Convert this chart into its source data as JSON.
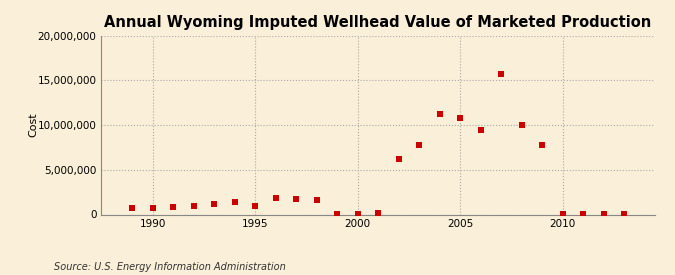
{
  "title": "Annual Wyoming Imputed Wellhead Value of Marketed Production",
  "ylabel": "Cost",
  "source": "Source: U.S. Energy Information Administration",
  "background_color": "#faefd8",
  "plot_bg_color": "#faefd8",
  "marker_color": "#cc0000",
  "years": [
    1989,
    1990,
    1991,
    1992,
    1993,
    1994,
    1995,
    1996,
    1997,
    1998,
    1999,
    2000,
    2001,
    2002,
    2003,
    2004,
    2005,
    2006,
    2007,
    2008,
    2009,
    2010,
    2011,
    2012,
    2013
  ],
  "values": [
    700000,
    750000,
    800000,
    900000,
    1200000,
    1350000,
    1000000,
    1800000,
    1750000,
    1600000,
    30000,
    30000,
    200000,
    6200000,
    7800000,
    11300000,
    10800000,
    9500000,
    15700000,
    10000000,
    7800000,
    50000,
    100000,
    50000,
    30000
  ],
  "ylim": [
    0,
    20000000
  ],
  "yticks": [
    0,
    5000000,
    10000000,
    15000000,
    20000000
  ],
  "xlim": [
    1987.5,
    2014.5
  ],
  "xticks": [
    1990,
    1995,
    2000,
    2005,
    2010
  ],
  "title_fontsize": 10.5,
  "ylabel_fontsize": 8,
  "tick_fontsize": 7.5,
  "source_fontsize": 7
}
